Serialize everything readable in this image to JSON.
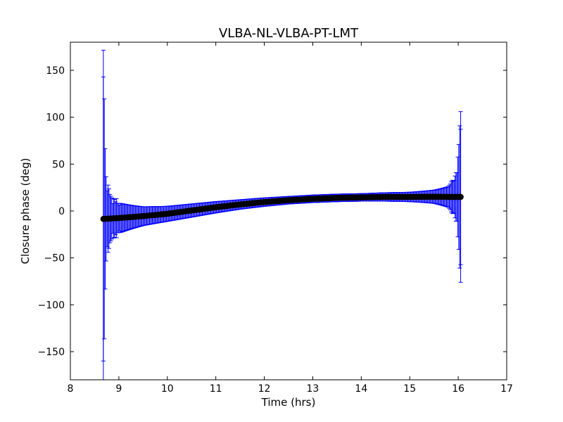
{
  "chart_data": {
    "type": "scatter",
    "title": "VLBA-NL-VLBA-PT-LMT",
    "xlabel": "Time (hrs)",
    "ylabel": "Closure phase (deg)",
    "xlim": [
      8,
      17
    ],
    "ylim": [
      -180,
      180
    ],
    "xticks": [
      8,
      9,
      10,
      11,
      12,
      13,
      14,
      15,
      16,
      17
    ],
    "yticks": [
      150,
      100,
      50,
      0,
      -50,
      -100,
      -150
    ],
    "grid": false,
    "legend": "none",
    "series": [
      {
        "style": "points with error bars",
        "marker_color": "#000000",
        "errorbar_color": "#0000ff",
        "x_start": 8.68,
        "x_end": 16.05,
        "points": [
          {
            "x": 8.68,
            "y": -8.5,
            "err": 180
          },
          {
            "x": 8.75,
            "y": -8.3,
            "err": 35
          },
          {
            "x": 8.85,
            "y": -8.0,
            "err": 22
          },
          {
            "x": 9.0,
            "y": -7.5,
            "err": 16
          },
          {
            "x": 9.5,
            "y": -5.5,
            "err": 10
          },
          {
            "x": 10.0,
            "y": -3.0,
            "err": 8
          },
          {
            "x": 10.5,
            "y": 0.5,
            "err": 7
          },
          {
            "x": 11.0,
            "y": 4.0,
            "err": 6
          },
          {
            "x": 11.5,
            "y": 7.0,
            "err": 5
          },
          {
            "x": 12.0,
            "y": 9.5,
            "err": 4.5
          },
          {
            "x": 12.5,
            "y": 11.5,
            "err": 4
          },
          {
            "x": 13.0,
            "y": 13.0,
            "err": 4
          },
          {
            "x": 13.5,
            "y": 14.0,
            "err": 4
          },
          {
            "x": 14.0,
            "y": 14.5,
            "err": 4
          },
          {
            "x": 14.5,
            "y": 15.0,
            "err": 4.5
          },
          {
            "x": 15.0,
            "y": 15.0,
            "err": 5
          },
          {
            "x": 15.5,
            "y": 15.2,
            "err": 7
          },
          {
            "x": 15.8,
            "y": 15.0,
            "err": 11
          },
          {
            "x": 15.95,
            "y": 15.0,
            "err": 20
          },
          {
            "x": 16.05,
            "y": 15.0,
            "err": 91
          }
        ]
      }
    ]
  }
}
